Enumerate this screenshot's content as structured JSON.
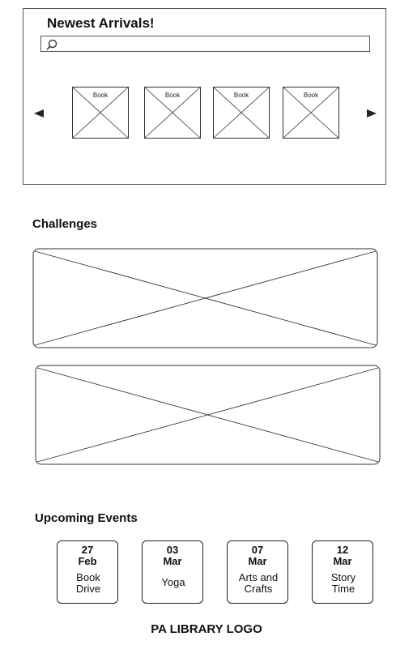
{
  "arrivals": {
    "title": "Newest Arrivals!",
    "search": {
      "value": "",
      "placeholder": ""
    },
    "books": [
      {
        "label": "Book"
      },
      {
        "label": "Book"
      },
      {
        "label": "Book"
      },
      {
        "label": "Book"
      }
    ],
    "icons": {
      "prev": "triangle-left-icon",
      "next": "triangle-right-icon",
      "search": "search-icon"
    }
  },
  "challenges": {
    "title": "Challenges"
  },
  "events": {
    "title": "Upcoming Events",
    "items": [
      {
        "day": "27",
        "month": "Feb",
        "name": "Book\nDrive"
      },
      {
        "day": "03",
        "month": "Mar",
        "name": "Yoga"
      },
      {
        "day": "07",
        "month": "Mar",
        "name": "Arts and\nCrafts"
      },
      {
        "day": "12",
        "month": "Mar",
        "name": "Story\nTime"
      }
    ]
  },
  "footer": {
    "logo_text": "PA LIBRARY LOGO"
  },
  "colors": {
    "line": "#555555",
    "text": "#111111",
    "background": "#ffffff"
  }
}
